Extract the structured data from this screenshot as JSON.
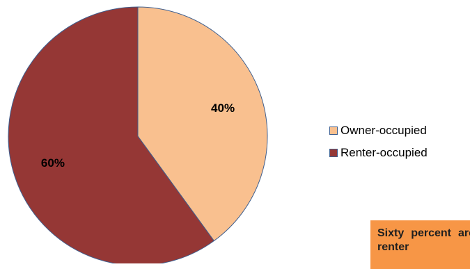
{
  "chart_data": {
    "type": "pie",
    "title": "",
    "slices": [
      {
        "label": "Owner-occupied",
        "value": 40,
        "display": "40%",
        "color": "#F9C08F"
      },
      {
        "label": "Renter-occupied",
        "value": 60,
        "display": "60%",
        "color": "#953735"
      }
    ],
    "legend_position": "right",
    "start_angle": "top",
    "direction": "clockwise",
    "slice_border_color": "#3F5F8F"
  },
  "callout": {
    "text": "Sixty percent are renter",
    "background": "#F79646"
  }
}
